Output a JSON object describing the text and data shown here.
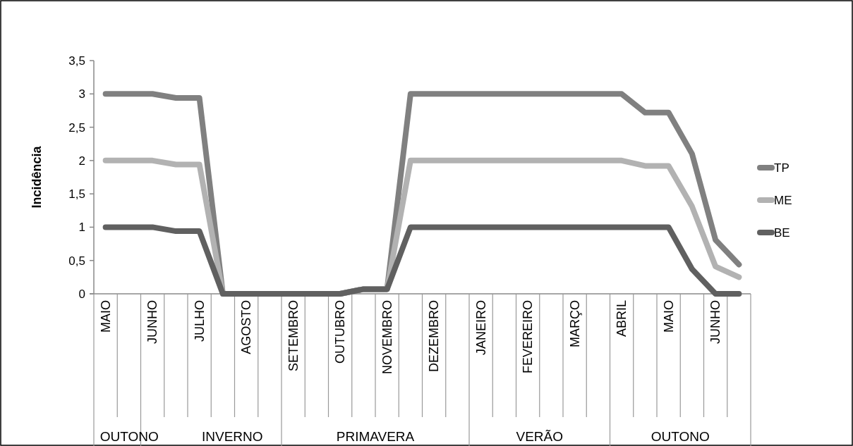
{
  "chart_data": {
    "type": "line",
    "ylabel": "Incidência",
    "categories": [
      "MAIO",
      null,
      "JUNHO",
      null,
      "JULHO",
      null,
      "AGOSTO",
      null,
      "SETEMBRO",
      null,
      "OUTUBRO",
      null,
      "NOVEMBRO",
      null,
      "DEZEMBRO",
      null,
      "JANEIRO",
      null,
      "FEVEREIRO",
      null,
      "MARÇO",
      null,
      "ABRIL",
      null,
      "MAIO",
      null,
      "JUNHO",
      null
    ],
    "series": [
      {
        "name": "TP",
        "color": "#808080",
        "values": [
          3,
          3,
          3,
          2.94,
          2.94,
          0,
          0,
          0,
          0,
          0,
          0,
          0.07,
          0.07,
          3,
          3,
          3,
          3,
          3,
          3,
          3,
          3,
          3,
          3,
          2.72,
          2.72,
          2.1,
          0.81,
          0.44
        ]
      },
      {
        "name": "ME",
        "color": "#b2b2b2",
        "values": [
          2,
          2,
          2,
          1.94,
          1.94,
          0,
          0,
          0,
          0,
          0,
          0,
          0.07,
          0.07,
          2,
          2,
          2,
          2,
          2,
          2,
          2,
          2,
          2,
          2,
          1.92,
          1.92,
          1.31,
          0.41,
          0.25
        ]
      },
      {
        "name": "BE",
        "color": "#606060",
        "values": [
          1,
          1,
          1,
          0.94,
          0.94,
          0,
          0,
          0,
          0,
          0,
          0,
          0.07,
          0.07,
          1,
          1,
          1,
          1,
          1,
          1,
          1,
          1,
          1,
          1,
          1,
          1,
          0.37,
          0,
          0
        ]
      }
    ],
    "ylim": [
      0,
      3.5
    ],
    "yticks": [
      0,
      {
        "value": 0.5,
        "label": "0,5"
      },
      1,
      {
        "value": 1.5,
        "label": "1,5"
      },
      2,
      {
        "value": 2.5,
        "label": "2,5"
      },
      3,
      {
        "value": 3.5,
        "label": "3,5"
      }
    ],
    "grid": false,
    "legend": "right",
    "marker": "none",
    "line_style": "solid",
    "annotations": [
      "OUTONO",
      "INVERNO",
      "PRIMAVERA",
      "VERÃO",
      "OUTONO"
    ]
  }
}
